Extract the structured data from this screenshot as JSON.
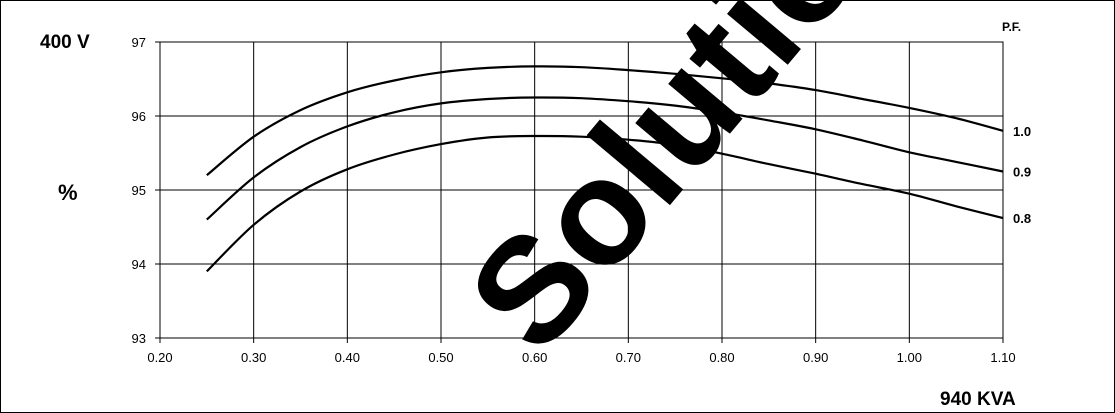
{
  "chart_data": {
    "type": "line",
    "voltage_label": "400 V",
    "ylabel": "%",
    "xlabel": "940 KVA",
    "legend_title": "P.F.",
    "ylim": [
      93,
      97
    ],
    "xlim": [
      0.2,
      1.1
    ],
    "x_ticks": [
      "0.20",
      "0.30",
      "0.40",
      "0.50",
      "0.60",
      "0.70",
      "0.80",
      "0.90",
      "1.00",
      "1.10"
    ],
    "y_ticks": [
      "93",
      "94",
      "95",
      "96",
      "97"
    ],
    "grid": true,
    "x": [
      0.25,
      0.3,
      0.35,
      0.4,
      0.45,
      0.5,
      0.55,
      0.6,
      0.65,
      0.7,
      0.75,
      0.8,
      0.85,
      0.9,
      0.95,
      1.0,
      1.05,
      1.1
    ],
    "series": [
      {
        "name": "1.0",
        "values": [
          95.2,
          95.72,
          96.08,
          96.32,
          96.48,
          96.59,
          96.65,
          96.67,
          96.66,
          96.62,
          96.57,
          96.51,
          96.44,
          96.35,
          96.23,
          96.11,
          95.97,
          95.8
        ]
      },
      {
        "name": "0.9",
        "values": [
          94.6,
          95.17,
          95.58,
          95.86,
          96.05,
          96.17,
          96.23,
          96.25,
          96.24,
          96.2,
          96.14,
          96.05,
          95.94,
          95.82,
          95.67,
          95.51,
          95.38,
          95.25
        ]
      },
      {
        "name": "0.8",
        "values": [
          93.9,
          94.53,
          94.98,
          95.28,
          95.48,
          95.62,
          95.71,
          95.73,
          95.72,
          95.68,
          95.61,
          95.49,
          95.35,
          95.22,
          95.08,
          94.95,
          94.78,
          94.62
        ]
      }
    ]
  },
  "watermark": {
    "text": "Solutions"
  }
}
